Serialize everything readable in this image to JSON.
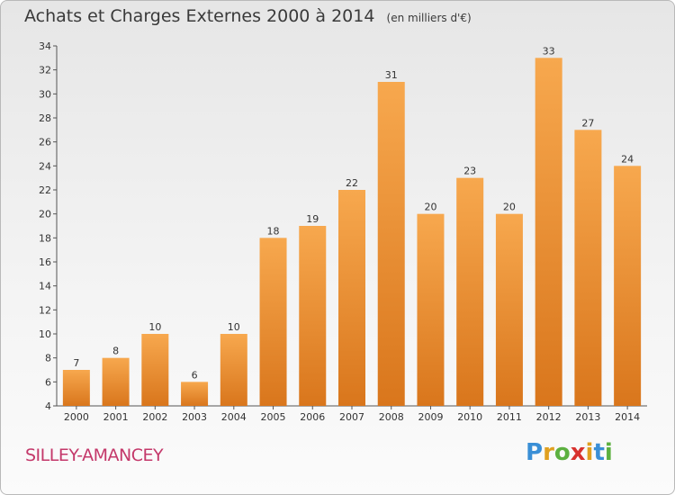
{
  "title": "Achats et Charges Externes 2000 à 2014",
  "unit": "(en milliers d'€)",
  "place": "SILLEY-AMANCEY",
  "logo": {
    "letters": [
      "P",
      "r",
      "o",
      "x",
      "i",
      "t",
      "i"
    ],
    "colors": [
      "#3a8fd6",
      "#e0a020",
      "#5cb040",
      "#d8322e",
      "#e0a020",
      "#3a8fd6",
      "#5cb040"
    ]
  },
  "chart_data": {
    "type": "bar",
    "categories": [
      "2000",
      "2001",
      "2002",
      "2003",
      "2004",
      "2005",
      "2006",
      "2007",
      "2008",
      "2009",
      "2010",
      "2011",
      "2012",
      "2013",
      "2014"
    ],
    "values": [
      7,
      8,
      10,
      6,
      10,
      18,
      19,
      22,
      31,
      20,
      23,
      20,
      33,
      27,
      24
    ],
    "ylim": [
      4,
      34
    ],
    "yticks": [
      4,
      6,
      8,
      10,
      12,
      14,
      16,
      18,
      20,
      22,
      24,
      26,
      28,
      30,
      32,
      34
    ],
    "grid": false,
    "bar_color": "#f29a3a"
  }
}
